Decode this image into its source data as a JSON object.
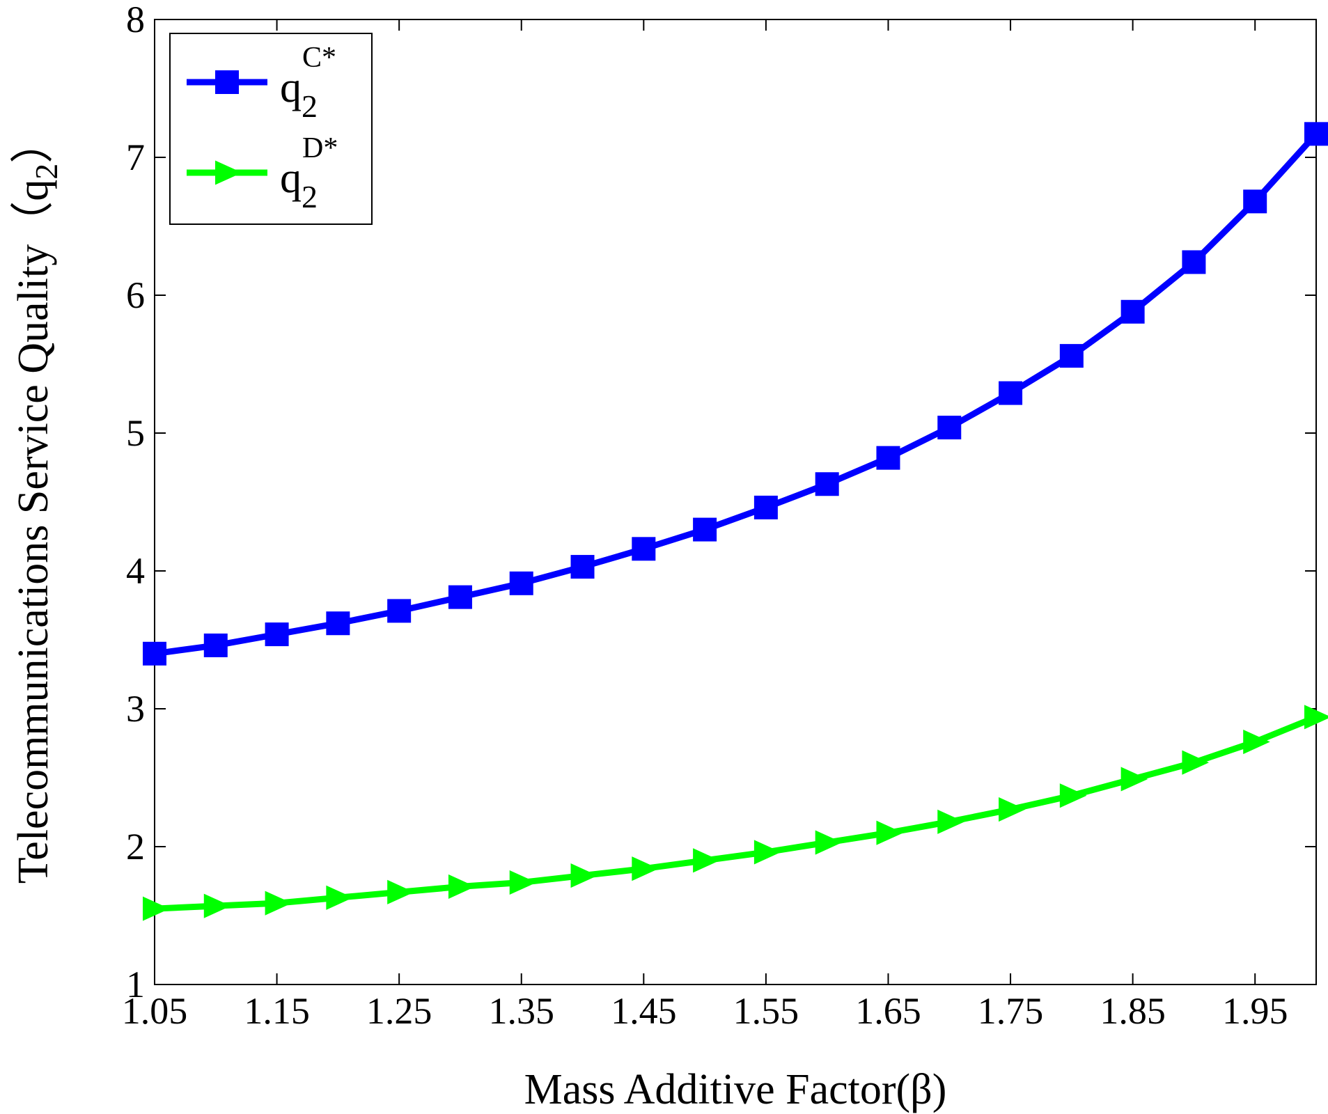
{
  "chart_data": {
    "type": "line",
    "title": "",
    "xlabel": "Mass Additive Factor(β)",
    "ylabel": {
      "main": "Telecommunications Service Quality（q",
      "sub": "2",
      "close": "）"
    },
    "xlim": [
      1.05,
      2.0
    ],
    "ylim": [
      1,
      8
    ],
    "xticks": [
      1.05,
      1.15,
      1.25,
      1.35,
      1.45,
      1.55,
      1.65,
      1.75,
      1.85,
      1.95
    ],
    "xtick_labels": [
      "1.05",
      "1.15",
      "1.25",
      "1.35",
      "1.45",
      "1.55",
      "1.65",
      "1.75",
      "1.85",
      "1.95"
    ],
    "yticks": [
      1,
      2,
      3,
      4,
      5,
      6,
      7,
      8
    ],
    "ytick_labels": [
      "1",
      "2",
      "3",
      "4",
      "5",
      "6",
      "7",
      "8"
    ],
    "grid": false,
    "legend_position": "top-left",
    "x": [
      1.05,
      1.1,
      1.15,
      1.2,
      1.25,
      1.3,
      1.35,
      1.4,
      1.45,
      1.5,
      1.55,
      1.6,
      1.65,
      1.7,
      1.75,
      1.8,
      1.85,
      1.9,
      1.95,
      2.0
    ],
    "series": [
      {
        "key": "qc",
        "base": "q",
        "sub": "2",
        "sup": "C*",
        "color": "#0000ff",
        "marker": "square",
        "values": [
          3.4,
          3.46,
          3.54,
          3.62,
          3.71,
          3.81,
          3.91,
          4.03,
          4.16,
          4.3,
          4.46,
          4.63,
          4.82,
          5.04,
          5.29,
          5.56,
          5.88,
          6.24,
          6.68,
          7.17
        ]
      },
      {
        "key": "qd",
        "base": "q",
        "sub": "2",
        "sup": "D*",
        "color": "#00ff00",
        "marker": "triangle-right",
        "values": [
          1.55,
          1.57,
          1.59,
          1.63,
          1.67,
          1.71,
          1.74,
          1.79,
          1.84,
          1.9,
          1.96,
          2.03,
          2.1,
          2.18,
          2.27,
          2.37,
          2.49,
          2.61,
          2.76,
          2.94
        ]
      }
    ]
  }
}
